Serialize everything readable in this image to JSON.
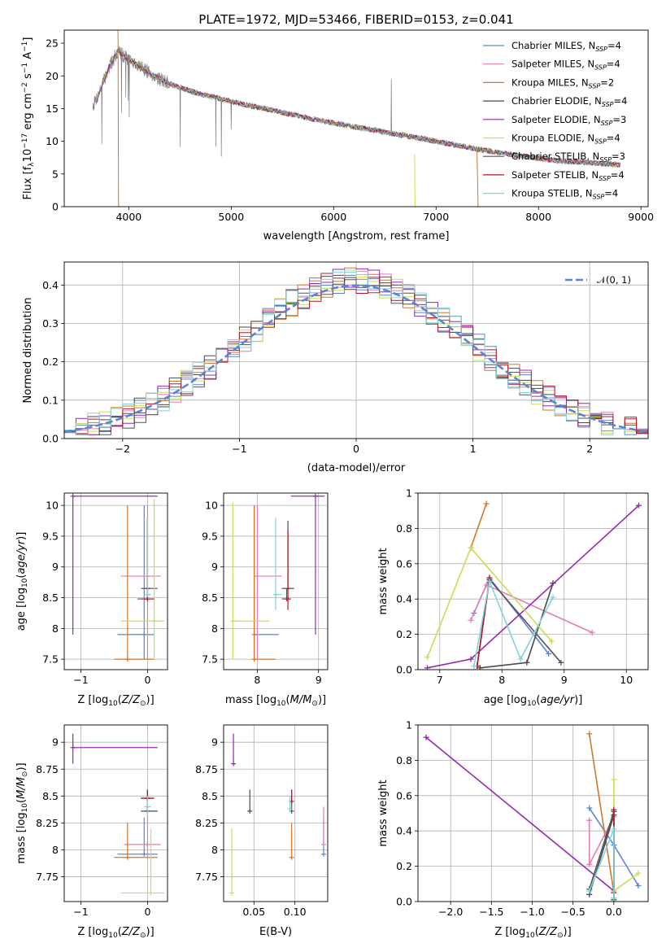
{
  "figure": {
    "title": "PLATE=1972, MJD=53466, FIBERID=0153, z=0.041"
  },
  "chart_data": [
    {
      "id": "spectrum",
      "type": "line",
      "title": "PLATE=1972, MJD=53466, FIBERID=0153, z=0.041",
      "xlabel": "wavelength [Angstrom, rest frame]",
      "ylabel": "Flux [f_λ10^-17 erg cm^-2 s^-1 A^-1]",
      "xlim": [
        3370,
        9070
      ],
      "ylim": [
        0,
        27
      ],
      "xticks": [
        4000,
        5000,
        6000,
        7000,
        8000,
        9000
      ],
      "yticks": [
        0,
        5,
        10,
        15,
        20,
        25
      ],
      "grid": false,
      "legend_position": "upper right",
      "data_color": "#808080",
      "data_envelope": {
        "x": [
          3650,
          3700,
          3800,
          3900,
          3950,
          4000,
          4100,
          4200,
          4300,
          4400,
          4500,
          4700,
          4900,
          5100,
          5300,
          5500,
          5800,
          6000,
          6200,
          6400,
          6600,
          6800,
          7000,
          7200,
          7400,
          7600,
          7800,
          8000,
          8200,
          8400,
          8600,
          8800
        ],
        "y": [
          15.5,
          17.0,
          21.0,
          24.0,
          23.0,
          22.5,
          21.5,
          20.5,
          19.5,
          18.8,
          18.2,
          17.2,
          16.5,
          15.7,
          15.1,
          14.4,
          13.4,
          12.8,
          12.2,
          11.7,
          11.1,
          10.6,
          10.0,
          9.4,
          8.8,
          8.3,
          7.8,
          7.4,
          7.0,
          6.8,
          6.6,
          6.4
        ]
      },
      "legend_entries": [
        {
          "label": "Chabrier MILES, N",
          "sub": "SSP",
          "suffix": "=4",
          "color": "#5b84d3"
        },
        {
          "label": "Salpeter MILES, N",
          "sub": "SSP",
          "suffix": "=4",
          "color": "#e27eb5"
        },
        {
          "label": "Kroupa MILES, N",
          "sub": "SSP",
          "suffix": "=2",
          "color": "#d4762a"
        },
        {
          "label": "Chabrier ELODIE, N",
          "sub": "SSP",
          "suffix": "=4",
          "color": "#4a4a4a"
        },
        {
          "label": "Salpeter ELODIE, N",
          "sub": "SSP",
          "suffix": "=3",
          "color": "#9429b2"
        },
        {
          "label": "Kroupa ELODIE, N",
          "sub": "SSP",
          "suffix": "=4",
          "color": "#c8df52"
        },
        {
          "label": "Chabrier STELIB, N",
          "sub": "SSP",
          "suffix": "=3",
          "color": "#555555"
        },
        {
          "label": "Salpeter STELIB, N",
          "sub": "SSP",
          "suffix": "=4",
          "color": "#b2182b"
        },
        {
          "label": "Kroupa STELIB, N",
          "sub": "SSP",
          "suffix": "=4",
          "color": "#7fd3df"
        }
      ]
    },
    {
      "id": "residuals",
      "type": "line",
      "xlabel": "(data-model)/error",
      "ylabel": "Normed distribution",
      "xlim": [
        -2.5,
        2.5
      ],
      "ylim": [
        0,
        0.46
      ],
      "xticks": [
        -2,
        -1,
        0,
        1,
        2
      ],
      "yticks": [
        0.0,
        0.1,
        0.2,
        0.3,
        0.4
      ],
      "grid": true,
      "legend_position": "upper right",
      "normal_label": "𝒩(0, 1)",
      "normal_color": "#5b84d3",
      "bins": 50,
      "series_colors": [
        "#5b84d3",
        "#e27eb5",
        "#d4762a",
        "#4a4a4a",
        "#9429b2",
        "#c8df52",
        "#555555",
        "#b2182b",
        "#7fd3df"
      ]
    },
    {
      "id": "age-vs-Z",
      "type": "scatter",
      "xlabel": "Z [log10(Z/Z⊙)]",
      "ylabel": "age [log10(age/yr)]",
      "xlim": [
        -1.25,
        0.3
      ],
      "ylim": [
        7.33,
        10.2
      ],
      "xticks": [
        -1,
        0
      ],
      "yticks": [
        7.5,
        8.0,
        8.5,
        9.0,
        9.5,
        10.0
      ],
      "grid": true,
      "points": [
        {
          "x": -0.05,
          "y": 7.9,
          "x_lo": -0.45,
          "x_hi": 0.1,
          "y_lo": 7.5,
          "y_hi": 10.0,
          "color": "#5b84d3"
        },
        {
          "x": 0.0,
          "y": 8.85,
          "x_lo": -0.4,
          "x_hi": 0.2,
          "y_lo": 7.5,
          "y_hi": 10.0,
          "color": "#e27eb5"
        },
        {
          "x": -0.3,
          "y": 7.5,
          "x_lo": -0.5,
          "x_hi": 0.1,
          "y_lo": 7.5,
          "y_hi": 10.0,
          "color": "#d4762a"
        },
        {
          "x": 0.0,
          "y": 8.65,
          "x_lo": -0.1,
          "x_hi": 0.15,
          "y_lo": 8.65,
          "y_hi": 9.8,
          "color": "#4a4a4a"
        },
        {
          "x": -1.12,
          "y": 10.15,
          "x_lo": -1.12,
          "x_hi": 0.15,
          "y_lo": 7.9,
          "y_hi": 10.15,
          "color": "#9429b2"
        },
        {
          "x": 0.1,
          "y": 8.12,
          "x_lo": -0.4,
          "x_hi": 0.25,
          "y_lo": 7.5,
          "y_hi": 10.1,
          "color": "#c8df52"
        },
        {
          "x": 0.0,
          "y": 8.48,
          "x_lo": -0.15,
          "x_hi": 0.1,
          "y_lo": 8.48,
          "y_hi": 9.75,
          "color": "#555555"
        },
        {
          "x": 0.0,
          "y": 8.48,
          "x_lo": -0.1,
          "x_hi": 0.1,
          "y_lo": 8.48,
          "y_hi": 8.65,
          "color": "#b2182b"
        },
        {
          "x": 0.0,
          "y": 8.55,
          "x_lo": -0.05,
          "x_hi": 0.05,
          "y_lo": 8.55,
          "y_hi": 9.8,
          "color": "#7fd3df"
        }
      ]
    },
    {
      "id": "age-vs-mass",
      "type": "scatter",
      "xlabel": "mass [log10(M/M⊙)]",
      "ylabel": "",
      "xlim": [
        7.45,
        9.15
      ],
      "ylim": [
        7.33,
        10.2
      ],
      "xticks": [
        8,
        9
      ],
      "yticks": [
        7.5,
        8.0,
        8.5,
        9.0,
        9.5,
        10.0
      ],
      "grid": true,
      "points": [
        {
          "x": 7.95,
          "y": 7.9,
          "x_lo": 7.95,
          "x_hi": 8.35,
          "y_lo": 7.5,
          "y_hi": 10.0,
          "color": "#5b84d3"
        },
        {
          "x": 8.0,
          "y": 8.85,
          "x_lo": 8.0,
          "x_hi": 8.4,
          "y_lo": 7.5,
          "y_hi": 10.0,
          "color": "#e27eb5"
        },
        {
          "x": 7.95,
          "y": 7.5,
          "x_lo": 7.95,
          "x_hi": 8.3,
          "y_lo": 7.5,
          "y_hi": 10.0,
          "color": "#d4762a"
        },
        {
          "x": 8.5,
          "y": 8.65,
          "x_lo": 8.4,
          "x_hi": 8.6,
          "y_lo": 8.65,
          "y_hi": 9.75,
          "color": "#4a4a4a"
        },
        {
          "x": 8.95,
          "y": 10.15,
          "x_lo": 8.55,
          "x_hi": 9.1,
          "y_lo": 7.9,
          "y_hi": 10.15,
          "color": "#9429b2"
        },
        {
          "x": 7.6,
          "y": 8.12,
          "x_lo": 7.6,
          "x_hi": 8.2,
          "y_lo": 7.5,
          "y_hi": 10.05,
          "color": "#c8df52"
        },
        {
          "x": 8.48,
          "y": 8.48,
          "x_lo": 8.4,
          "x_hi": 8.5,
          "y_lo": 8.48,
          "y_hi": 8.65,
          "color": "#555555"
        },
        {
          "x": 8.5,
          "y": 8.48,
          "x_lo": 8.45,
          "x_hi": 8.55,
          "y_lo": 8.3,
          "y_hi": 9.6,
          "color": "#b2182b"
        },
        {
          "x": 8.3,
          "y": 8.55,
          "x_lo": 8.3,
          "x_hi": 8.4,
          "y_lo": 8.3,
          "y_hi": 9.8,
          "color": "#7fd3df"
        }
      ]
    },
    {
      "id": "massweight-vs-age",
      "type": "line",
      "xlabel": "age  [log10(age/yr)]",
      "ylabel": "mass weight",
      "xlim": [
        6.65,
        10.35
      ],
      "ylim": [
        0.0,
        1.0
      ],
      "xticks": [
        7,
        8,
        9,
        10
      ],
      "yticks": [
        0.0,
        0.2,
        0.4,
        0.6,
        0.8,
        1.0
      ],
      "grid": true,
      "series": [
        {
          "x": [
            7.55,
            7.8,
            8.75
          ],
          "y": [
            0.32,
            0.52,
            0.09
          ],
          "color": "#5b84d3"
        },
        {
          "x": [
            7.5,
            7.75,
            9.45
          ],
          "y": [
            0.28,
            0.48,
            0.21
          ],
          "color": "#e27eb5"
        },
        {
          "x": [
            7.5,
            7.75
          ],
          "y": [
            0.69,
            0.94
          ],
          "color": "#d4762a"
        },
        {
          "x": [
            7.65,
            8.4,
            8.82
          ],
          "y": [
            0.01,
            0.04,
            0.49
          ],
          "color": "#4a4a4a"
        },
        {
          "x": [
            6.8,
            7.5,
            10.2
          ],
          "y": [
            0.01,
            0.06,
            0.93
          ],
          "color": "#9429b2"
        },
        {
          "x": [
            6.8,
            7.5,
            8.8
          ],
          "y": [
            0.07,
            0.69,
            0.16
          ],
          "color": "#c8df52"
        },
        {
          "x": [
            7.6,
            7.8,
            8.95
          ],
          "y": [
            0.02,
            0.51,
            0.04
          ],
          "color": "#555555"
        },
        {
          "x": [
            7.6,
            7.8
          ],
          "y": [
            0.02,
            0.52
          ],
          "color": "#b2182b"
        },
        {
          "x": [
            7.55,
            7.8,
            8.3,
            8.82
          ],
          "y": [
            0.02,
            0.5,
            0.06,
            0.41
          ],
          "color": "#7fd3df"
        }
      ]
    },
    {
      "id": "mass-vs-Z",
      "type": "scatter",
      "xlabel": "Z [log10(Z/Z⊙)]",
      "ylabel": "mass [log10(M/M⊙)]",
      "xlim": [
        -1.25,
        0.3
      ],
      "ylim": [
        7.52,
        9.16
      ],
      "xticks": [
        -1,
        0
      ],
      "yticks": [
        7.75,
        8.0,
        8.25,
        8.5,
        8.75,
        9.0
      ],
      "grid": true,
      "points": [
        {
          "x": -0.05,
          "y": 7.96,
          "x_lo": -0.45,
          "x_hi": 0.15,
          "y_lo": 7.96,
          "y_hi": 8.3,
          "color": "#5b84d3"
        },
        {
          "x": 0.0,
          "y": 8.05,
          "x_lo": -0.35,
          "x_hi": 0.2,
          "y_lo": 7.93,
          "y_hi": 8.4,
          "color": "#e27eb5"
        },
        {
          "x": -0.3,
          "y": 7.93,
          "x_lo": -0.5,
          "x_hi": 0.15,
          "y_lo": 7.93,
          "y_hi": 8.25,
          "color": "#d4762a"
        },
        {
          "x": 0.0,
          "y": 8.36,
          "x_lo": -0.1,
          "x_hi": 0.15,
          "y_lo": 8.36,
          "y_hi": 8.56,
          "color": "#4a4a4a"
        },
        {
          "x": -1.12,
          "y": 8.95,
          "x_lo": -1.12,
          "x_hi": 0.15,
          "y_lo": 8.8,
          "y_hi": 9.08,
          "color": "#9429b2"
        },
        {
          "x": 0.05,
          "y": 7.6,
          "x_lo": -0.4,
          "x_hi": 0.25,
          "y_lo": 7.6,
          "y_hi": 8.2,
          "color": "#c8df52"
        },
        {
          "x": 0.0,
          "y": 8.48,
          "x_lo": -0.1,
          "x_hi": 0.1,
          "y_lo": 8.36,
          "y_hi": 8.55,
          "color": "#555555"
        },
        {
          "x": 0.0,
          "y": 8.48,
          "x_lo": -0.1,
          "x_hi": 0.1,
          "y_lo": 8.48,
          "y_hi": 8.56,
          "color": "#b2182b"
        },
        {
          "x": 0.0,
          "y": 8.4,
          "x_lo": -0.05,
          "x_hi": 0.05,
          "y_lo": 8.3,
          "y_hi": 8.5,
          "color": "#7fd3df"
        }
      ]
    },
    {
      "id": "mass-vs-ebv",
      "type": "scatter",
      "xlabel": "E(B-V)",
      "ylabel": "",
      "xlim": [
        0.013,
        0.14
      ],
      "ylim": [
        7.52,
        9.16
      ],
      "xticks": [
        0.05,
        0.1
      ],
      "xtick_labels": [
        "0.05",
        "0.10"
      ],
      "yticks": [
        7.75,
        8.0,
        8.25,
        8.5,
        8.75,
        9.0
      ],
      "grid": true,
      "points": [
        {
          "x": 0.135,
          "y": 7.96,
          "x_lo": 0.135,
          "x_hi": 0.135,
          "y_lo": 7.96,
          "y_hi": 8.3,
          "color": "#5b84d3"
        },
        {
          "x": 0.135,
          "y": 8.05,
          "x_lo": 0.135,
          "x_hi": 0.135,
          "y_lo": 8.05,
          "y_hi": 8.4,
          "color": "#e27eb5"
        },
        {
          "x": 0.096,
          "y": 7.93,
          "x_lo": 0.096,
          "x_hi": 0.096,
          "y_lo": 7.93,
          "y_hi": 8.25,
          "color": "#d4762a"
        },
        {
          "x": 0.045,
          "y": 8.36,
          "x_lo": 0.045,
          "x_hi": 0.045,
          "y_lo": 8.36,
          "y_hi": 8.56,
          "color": "#4a4a4a"
        },
        {
          "x": 0.025,
          "y": 8.8,
          "x_lo": 0.025,
          "x_hi": 0.025,
          "y_lo": 8.8,
          "y_hi": 9.08,
          "color": "#9429b2"
        },
        {
          "x": 0.023,
          "y": 7.6,
          "x_lo": 0.023,
          "x_hi": 0.023,
          "y_lo": 7.6,
          "y_hi": 8.2,
          "color": "#c8df52"
        },
        {
          "x": 0.096,
          "y": 8.36,
          "x_lo": 0.096,
          "x_hi": 0.096,
          "y_lo": 8.36,
          "y_hi": 8.56,
          "color": "#555555"
        },
        {
          "x": 0.096,
          "y": 8.45,
          "x_lo": 0.096,
          "x_hi": 0.096,
          "y_lo": 8.45,
          "y_hi": 8.56,
          "color": "#b2182b"
        },
        {
          "x": 0.094,
          "y": 8.38,
          "x_lo": 0.094,
          "x_hi": 0.094,
          "y_lo": 8.38,
          "y_hi": 8.5,
          "color": "#7fd3df"
        }
      ]
    },
    {
      "id": "massweight-vs-Z",
      "type": "line",
      "xlabel": "Z [log10(Z/Z⊙)]",
      "ylabel": "mass weight",
      "xlim": [
        -2.4,
        0.42
      ],
      "ylim": [
        0.0,
        1.0
      ],
      "xticks": [
        -2.0,
        -1.5,
        -1.0,
        -0.5,
        0.0
      ],
      "xtick_labels": [
        "−2.0",
        "−1.5",
        "−1.0",
        "−0.5",
        "0.0"
      ],
      "yticks": [
        0.0,
        0.2,
        0.4,
        0.6,
        0.8,
        1.0
      ],
      "grid": true,
      "series": [
        {
          "x": [
            -0.3,
            0.0,
            0.3
          ],
          "y": [
            0.53,
            0.32,
            0.09
          ],
          "color": "#5b84d3"
        },
        {
          "x": [
            -0.3,
            -0.3,
            0.0
          ],
          "y": [
            0.46,
            0.21,
            0.48
          ],
          "color": "#e27eb5"
        },
        {
          "x": [
            -0.3,
            0.0
          ],
          "y": [
            0.95,
            0.05
          ],
          "color": "#d4762a"
        },
        {
          "x": [
            -0.3,
            0.0,
            0.0
          ],
          "y": [
            0.04,
            0.49,
            0.01
          ],
          "color": "#4a4a4a"
        },
        {
          "x": [
            -2.3,
            0.0
          ],
          "y": [
            0.93,
            0.06
          ],
          "color": "#9429b2"
        },
        {
          "x": [
            0.0,
            0.0,
            0.3
          ],
          "y": [
            0.69,
            0.06,
            0.16
          ],
          "color": "#c8df52"
        },
        {
          "x": [
            -0.3,
            0.0,
            0.0
          ],
          "y": [
            0.07,
            0.51,
            0.02
          ],
          "color": "#555555"
        },
        {
          "x": [
            0.0,
            0.0
          ],
          "y": [
            0.05,
            0.52
          ],
          "color": "#b2182b"
        },
        {
          "x": [
            -0.3,
            0.0,
            0.0
          ],
          "y": [
            0.06,
            0.41,
            0.02
          ],
          "color": "#7fd3df"
        }
      ]
    }
  ]
}
